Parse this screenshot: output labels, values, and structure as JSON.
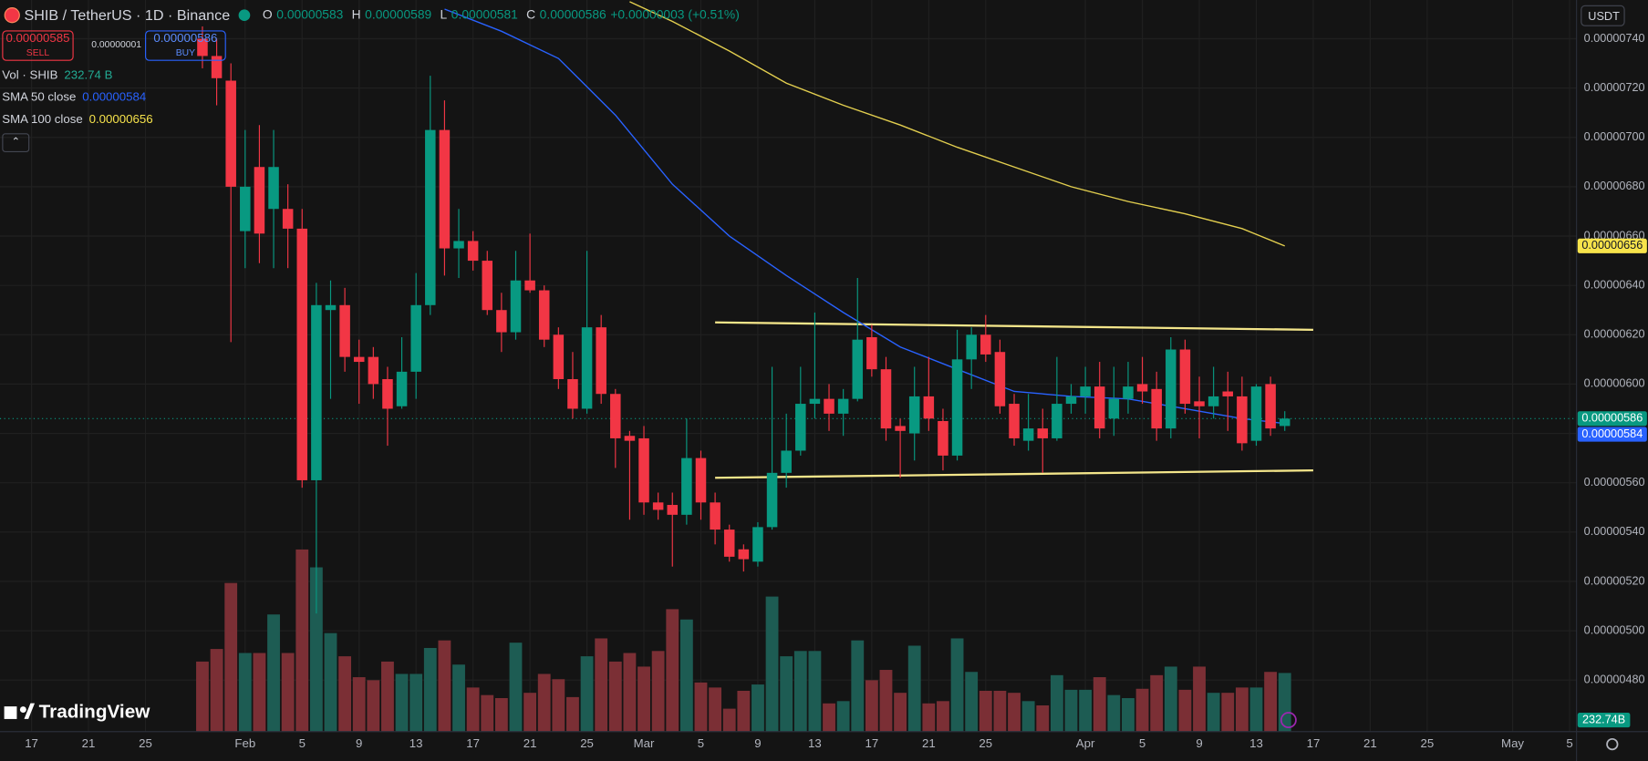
{
  "header": {
    "symbol": "SHIB / TetherUS · 1D · Binance",
    "ohlc": [
      {
        "key": "O",
        "value": "0.00000583"
      },
      {
        "key": "H",
        "value": "0.00000589"
      },
      {
        "key": "L",
        "value": "0.00000581"
      },
      {
        "key": "C",
        "value": "0.00000586"
      }
    ],
    "change": "+0.00000003 (+0.51%)",
    "sell_price": "0.00000585",
    "sell_label": "SELL",
    "spread": "0.00000001",
    "buy_price": "0.00000586",
    "buy_label": "BUY",
    "currency": "USDT",
    "logo": "TradingView"
  },
  "chart_data": {
    "type": "candlestick",
    "x": [
      "Jan 29",
      "Jan 30",
      "Jan 31",
      "Feb 1",
      "Feb 2",
      "Feb 3",
      "Feb 4",
      "Feb 5",
      "Feb 6",
      "Feb 7",
      "Feb 8",
      "Feb 9",
      "Feb 10",
      "Feb 11",
      "Feb 12",
      "Feb 13",
      "Feb 14",
      "Feb 15",
      "Feb 16",
      "Feb 17",
      "Feb 18",
      "Feb 19",
      "Feb 20",
      "Feb 21",
      "Feb 22",
      "Feb 23",
      "Feb 24",
      "Feb 25",
      "Feb 26",
      "Feb 27",
      "Feb 28",
      "Mar 1",
      "Mar 2",
      "Mar 3",
      "Mar 4",
      "Mar 5",
      "Mar 6",
      "Mar 7",
      "Mar 8",
      "Mar 9",
      "Mar 10",
      "Mar 11",
      "Mar 12",
      "Mar 13",
      "Mar 14",
      "Mar 15",
      "Mar 16",
      "Mar 17",
      "Mar 18",
      "Mar 19",
      "Mar 20",
      "Mar 21",
      "Mar 22",
      "Mar 23",
      "Mar 24",
      "Mar 25",
      "Mar 26",
      "Mar 27",
      "Mar 28",
      "Mar 29",
      "Mar 30",
      "Mar 31",
      "Apr 1",
      "Apr 2",
      "Apr 3",
      "Apr 4",
      "Apr 5",
      "Apr 6",
      "Apr 7",
      "Apr 8",
      "Apr 9",
      "Apr 10",
      "Apr 11",
      "Apr 12",
      "Apr 13",
      "Apr 14",
      "Apr 15"
    ],
    "open": [
      7.4e-06,
      7.33e-06,
      7.23e-06,
      6.62e-06,
      6.88e-06,
      6.71e-06,
      6.71e-06,
      6.63e-06,
      5.61e-06,
      6.3e-06,
      6.32e-06,
      6.11e-06,
      6.11e-06,
      6.02e-06,
      5.91e-06,
      6.05e-06,
      6.32e-06,
      7.03e-06,
      6.55e-06,
      6.58e-06,
      6.5e-06,
      6.3e-06,
      6.21e-06,
      6.42e-06,
      6.38e-06,
      6.2e-06,
      6.02e-06,
      5.9e-06,
      6.23e-06,
      5.96e-06,
      5.79e-06,
      5.78e-06,
      5.52e-06,
      5.51e-06,
      5.47e-06,
      5.7e-06,
      5.52e-06,
      5.41e-06,
      5.33e-06,
      5.28e-06,
      5.42e-06,
      5.64e-06,
      5.73e-06,
      5.92e-06,
      5.94e-06,
      5.88e-06,
      5.94e-06,
      6.19e-06,
      6.06e-06,
      5.83e-06,
      5.8e-06,
      5.95e-06,
      5.85e-06,
      5.71e-06,
      6.1e-06,
      6.2e-06,
      6.13e-06,
      5.92e-06,
      5.77e-06,
      5.82e-06,
      5.78e-06,
      5.92e-06,
      5.95e-06,
      5.99e-06,
      5.86e-06,
      5.94e-06,
      6e-06,
      5.98e-06,
      5.82e-06,
      6.14e-06,
      5.93e-06,
      5.91e-06,
      5.97e-06,
      5.95e-06,
      5.77e-06,
      6e-06,
      5.83e-06
    ],
    "high": [
      7.45e-06,
      7.4e-06,
      7.3e-06,
      7.03e-06,
      7.05e-06,
      7.03e-06,
      6.81e-06,
      6.71e-06,
      6.41e-06,
      6.42e-06,
      6.39e-06,
      6.18e-06,
      6.15e-06,
      6.07e-06,
      6.19e-06,
      6.45e-06,
      7.25e-06,
      7.15e-06,
      6.71e-06,
      6.62e-06,
      6.54e-06,
      6.37e-06,
      6.54e-06,
      6.61e-06,
      6.4e-06,
      6.23e-06,
      6.13e-06,
      6.54e-06,
      6.28e-06,
      5.98e-06,
      5.81e-06,
      5.83e-06,
      5.56e-06,
      5.56e-06,
      5.86e-06,
      5.73e-06,
      5.56e-06,
      5.43e-06,
      5.35e-06,
      5.44e-06,
      6.07e-06,
      5.88e-06,
      6.07e-06,
      6.29e-06,
      6e-06,
      5.98e-06,
      6.43e-06,
      6.24e-06,
      6.11e-06,
      5.86e-06,
      6.07e-06,
      6.11e-06,
      5.9e-06,
      6.22e-06,
      6.23e-06,
      6.28e-06,
      6.18e-06,
      5.96e-06,
      5.96e-06,
      5.9e-06,
      6.11e-06,
      6e-06,
      6.07e-06,
      6.09e-06,
      6.07e-06,
      6.09e-06,
      6.11e-06,
      6.05e-06,
      6.19e-06,
      6.18e-06,
      6.03e-06,
      6.07e-06,
      6.05e-06,
      6.03e-06,
      6e-06,
      6.03e-06,
      5.89e-06
    ],
    "low": [
      7.28e-06,
      7.13e-06,
      6.17e-06,
      6.47e-06,
      6.49e-06,
      6.47e-06,
      6.47e-06,
      5.58e-06,
      5.07e-06,
      5.94e-06,
      6.05e-06,
      5.92e-06,
      5.94e-06,
      5.75e-06,
      5.9e-06,
      5.94e-06,
      6.28e-06,
      6.44e-06,
      6.43e-06,
      6.46e-06,
      6.28e-06,
      6.13e-06,
      6.18e-06,
      6.37e-06,
      6.15e-06,
      5.98e-06,
      5.86e-06,
      5.88e-06,
      5.92e-06,
      5.66e-06,
      5.45e-06,
      5.47e-06,
      5.45e-06,
      5.26e-06,
      5.43e-06,
      5.45e-06,
      5.35e-06,
      5.28e-06,
      5.24e-06,
      5.26e-06,
      5.41e-06,
      5.58e-06,
      5.71e-06,
      5.86e-06,
      5.81e-06,
      5.79e-06,
      5.93e-06,
      6.03e-06,
      5.77e-06,
      5.62e-06,
      5.69e-06,
      5.81e-06,
      5.65e-06,
      5.69e-06,
      5.98e-06,
      6.09e-06,
      5.88e-06,
      5.75e-06,
      5.73e-06,
      5.64e-06,
      5.77e-06,
      5.88e-06,
      5.88e-06,
      5.78e-06,
      5.79e-06,
      5.88e-06,
      5.92e-06,
      5.77e-06,
      5.78e-06,
      5.88e-06,
      5.78e-06,
      5.86e-06,
      5.81e-06,
      5.73e-06,
      5.75e-06,
      5.79e-06,
      5.81e-06
    ],
    "close": [
      7.33e-06,
      7.24e-06,
      6.8e-06,
      6.8e-06,
      6.61e-06,
      6.88e-06,
      6.63e-06,
      5.61e-06,
      6.32e-06,
      6.32e-06,
      6.11e-06,
      6.09e-06,
      6e-06,
      5.9e-06,
      6.05e-06,
      6.32e-06,
      7.03e-06,
      6.55e-06,
      6.58e-06,
      6.5e-06,
      6.3e-06,
      6.21e-06,
      6.42e-06,
      6.38e-06,
      6.18e-06,
      6.02e-06,
      5.9e-06,
      6.23e-06,
      5.96e-06,
      5.78e-06,
      5.77e-06,
      5.52e-06,
      5.49e-06,
      5.47e-06,
      5.7e-06,
      5.52e-06,
      5.41e-06,
      5.3e-06,
      5.29e-06,
      5.42e-06,
      5.64e-06,
      5.73e-06,
      5.92e-06,
      5.94e-06,
      5.88e-06,
      5.94e-06,
      6.18e-06,
      6.06e-06,
      5.82e-06,
      5.81e-06,
      5.95e-06,
      5.86e-06,
      5.71e-06,
      6.1e-06,
      6.2e-06,
      6.12e-06,
      5.91e-06,
      5.78e-06,
      5.82e-06,
      5.78e-06,
      5.92e-06,
      5.95e-06,
      5.99e-06,
      5.82e-06,
      5.94e-06,
      5.99e-06,
      5.97e-06,
      5.82e-06,
      6.14e-06,
      5.92e-06,
      5.91e-06,
      5.95e-06,
      5.95e-06,
      5.76e-06,
      5.99e-06,
      5.82e-06,
      5.86e-06
    ],
    "last_close_label": "0.00000586",
    "up_color": "#089981",
    "down_color": "#f23645",
    "ylim": [
      4.591e-06,
      7.557e-06
    ],
    "yticks": [
      {
        "value": 7.4e-06,
        "label": "0.00000740"
      },
      {
        "value": 7.2e-06,
        "label": "0.00000720"
      },
      {
        "value": 7e-06,
        "label": "0.00000700"
      },
      {
        "value": 6.8e-06,
        "label": "0.00000680"
      },
      {
        "value": 6.6e-06,
        "label": "0.00000660"
      },
      {
        "value": 6.4e-06,
        "label": "0.00000640"
      },
      {
        "value": 6.2e-06,
        "label": "0.00000620"
      },
      {
        "value": 6e-06,
        "label": "0.00000600"
      },
      {
        "value": 5.8e-06,
        "label": "0.00000580"
      },
      {
        "value": 5.6e-06,
        "label": "0.00000560"
      },
      {
        "value": 5.4e-06,
        "label": "0.00000540"
      },
      {
        "value": 5.2e-06,
        "label": "0.00000520"
      },
      {
        "value": 5e-06,
        "label": "0.00000500"
      },
      {
        "value": 4.8e-06,
        "label": "0.00000480"
      }
    ],
    "xticks": [
      {
        "value": "Jan 17",
        "label": "17"
      },
      {
        "value": "Jan 21",
        "label": "21"
      },
      {
        "value": "Jan 25",
        "label": "25"
      },
      {
        "value": "Feb 1",
        "label": "Feb"
      },
      {
        "value": "Feb 5",
        "label": "5"
      },
      {
        "value": "Feb 9",
        "label": "9"
      },
      {
        "value": "Feb 13",
        "label": "13"
      },
      {
        "value": "Feb 17",
        "label": "17"
      },
      {
        "value": "Feb 21",
        "label": "21"
      },
      {
        "value": "Feb 25",
        "label": "25"
      },
      {
        "value": "Mar 1",
        "label": "Mar"
      },
      {
        "value": "Mar 5",
        "label": "5"
      },
      {
        "value": "Mar 9",
        "label": "9"
      },
      {
        "value": "Mar 13",
        "label": "13"
      },
      {
        "value": "Mar 17",
        "label": "17"
      },
      {
        "value": "Mar 21",
        "label": "21"
      },
      {
        "value": "Mar 25",
        "label": "25"
      },
      {
        "value": "Apr 1",
        "label": "Apr"
      },
      {
        "value": "Apr 5",
        "label": "5"
      },
      {
        "value": "Apr 9",
        "label": "9"
      },
      {
        "value": "Apr 13",
        "label": "13"
      },
      {
        "value": "Apr 17",
        "label": "17"
      },
      {
        "value": "Apr 21",
        "label": "21"
      },
      {
        "value": "Apr 25",
        "label": "25"
      },
      {
        "value": "May 1",
        "label": "May"
      },
      {
        "value": "May 5",
        "label": "5"
      }
    ],
    "grid": true,
    "volume": {
      "name": "Vol · SHIB",
      "legend_label": "232.74 B",
      "last_label": "232.74B",
      "ylim": [
        0,
        1000
      ],
      "up_color": "#1d5c53",
      "down_color": "#7b2f35",
      "values": [
        278,
        328,
        590,
        312,
        312,
        465,
        312,
        723,
        652,
        391,
        299,
        216,
        204,
        278,
        229,
        229,
        332,
        362,
        266,
        175,
        145,
        133,
        353,
        154,
        229,
        208,
        137,
        299,
        370,
        278,
        312,
        258,
        320,
        486,
        445,
        195,
        175,
        91,
        162,
        187,
        536,
        299,
        320,
        320,
        112,
        121,
        362,
        204,
        245,
        154,
        341,
        112,
        121,
        370,
        237,
        162,
        162,
        154,
        121,
        104,
        224,
        166,
        166,
        216,
        145,
        133,
        170,
        224,
        258,
        166,
        258,
        154,
        154,
        175,
        175,
        237,
        232.74
      ]
    },
    "series": [
      {
        "name": "SMA 50 close",
        "color": "#2962ff",
        "value_label": "0.00000584",
        "x": [
          "Feb 15",
          "Feb 19",
          "Feb 23",
          "Feb 27",
          "Mar 3",
          "Mar 7",
          "Mar 11",
          "Mar 15",
          "Mar 19",
          "Mar 23",
          "Mar 27",
          "Mar 31",
          "Apr 4",
          "Apr 8",
          "Apr 12",
          "Apr 15"
        ],
        "values": [
          7.52e-06,
          7.43e-06,
          7.32e-06,
          7.09e-06,
          6.81e-06,
          6.6e-06,
          6.44e-06,
          6.29e-06,
          6.15e-06,
          6.06e-06,
          5.97e-06,
          5.95e-06,
          5.94e-06,
          5.9e-06,
          5.86e-06,
          5.84e-06
        ]
      },
      {
        "name": "SMA 100 close",
        "color": "#e3cf4f",
        "value_label": "0.00000656",
        "x": [
          "Feb 28",
          "Mar 3",
          "Mar 7",
          "Mar 11",
          "Mar 15",
          "Mar 19",
          "Mar 23",
          "Mar 27",
          "Mar 31",
          "Apr 4",
          "Apr 8",
          "Apr 12",
          "Apr 15"
        ],
        "values": [
          7.55e-06,
          7.47e-06,
          7.35e-06,
          7.22e-06,
          7.13e-06,
          7.05e-06,
          6.96e-06,
          6.88e-06,
          6.8e-06,
          6.74e-06,
          6.69e-06,
          6.63e-06,
          6.56e-06
        ]
      }
    ],
    "trendline_color": "#f3e58a",
    "trendlines": [
      {
        "x": [
          "Mar 6",
          "Apr 17"
        ],
        "values": [
          6.25e-06,
          6.22e-06
        ]
      },
      {
        "x": [
          "Mar 6",
          "Apr 17"
        ],
        "values": [
          5.62e-06,
          5.65e-06
        ]
      }
    ]
  }
}
